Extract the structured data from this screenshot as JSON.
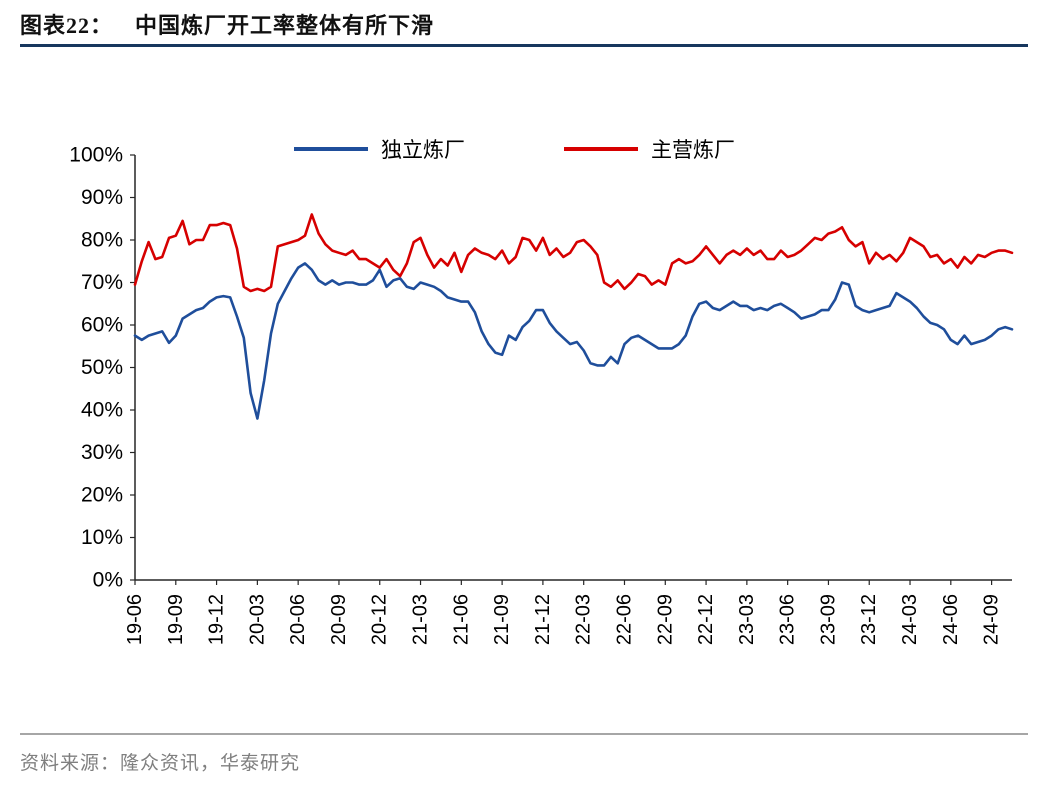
{
  "header": {
    "tag": "图表22：",
    "title": "中国炼厂开工率整体有所下滑"
  },
  "footer": {
    "source": "资料来源：隆众资讯，华泰研究"
  },
  "colors": {
    "title_rule": "#17375E",
    "footer_rule": "#A6A6A6",
    "footer_text": "#7F7F7F",
    "axis": "#262626",
    "label": "#000000",
    "independent_blue": "#1F4E9B",
    "main_red": "#D60000"
  },
  "chart_data": {
    "type": "line",
    "title": "中国炼厂开工率整体有所下滑",
    "xlabel": "",
    "ylabel": "",
    "grid": false,
    "legend_position": "top",
    "ylim": [
      0,
      100
    ],
    "y_tick_values": [
      0,
      10,
      20,
      30,
      40,
      50,
      60,
      70,
      80,
      90,
      100
    ],
    "y_tick_labels": [
      "0%",
      "10%",
      "20%",
      "30%",
      "40%",
      "50%",
      "60%",
      "70%",
      "80%",
      "90%",
      "100%"
    ],
    "x_start": "2019-06",
    "points_per_month": 2,
    "months_span": 64.5,
    "x_tick_month_offsets": [
      0,
      3,
      6,
      9,
      12,
      15,
      18,
      21,
      24,
      27,
      30,
      33,
      36,
      39,
      42,
      45,
      48,
      51,
      54,
      57,
      60,
      63
    ],
    "x_tick_labels": [
      "19-06",
      "19-09",
      "19-12",
      "20-03",
      "20-06",
      "20-09",
      "20-12",
      "21-03",
      "21-06",
      "21-09",
      "21-12",
      "22-03",
      "22-06",
      "22-09",
      "22-12",
      "23-03",
      "23-06",
      "23-09",
      "23-12",
      "24-03",
      "24-06",
      "24-09"
    ],
    "series": [
      {
        "name": "独立炼厂",
        "color": "#1F4E9B",
        "values": [
          57.5,
          56.5,
          57.5,
          58,
          58.5,
          55.8,
          57.5,
          61.5,
          62.5,
          63.5,
          64,
          65.5,
          66.5,
          66.8,
          66.5,
          62,
          57,
          44,
          38,
          47,
          58,
          65,
          68,
          71,
          73.5,
          74.5,
          73,
          70.5,
          69.5,
          70.5,
          69.5,
          70,
          70,
          69.5,
          69.5,
          70.5,
          73,
          69,
          70.5,
          71,
          69,
          68.5,
          70,
          69.5,
          69,
          68,
          66.5,
          66,
          65.5,
          65.5,
          63,
          58.5,
          55.5,
          53.5,
          53,
          57.5,
          56.5,
          59.5,
          61,
          63.5,
          63.5,
          60.5,
          58.5,
          57,
          55.5,
          56,
          54,
          51,
          50.5,
          50.5,
          52.5,
          51,
          55.5,
          57,
          57.5,
          56.5,
          55.5,
          54.5,
          54.5,
          54.5,
          55.5,
          57.5,
          62,
          65,
          65.5,
          64,
          63.5,
          64.5,
          65.5,
          64.5,
          64.5,
          63.5,
          64,
          63.5,
          64.5,
          65,
          64,
          63,
          61.5,
          62,
          62.5,
          63.5,
          63.5,
          66,
          70,
          69.5,
          64.5,
          63.5,
          63,
          63.5,
          64,
          64.5,
          67.5,
          66.5,
          65.5,
          64,
          62,
          60.5,
          60,
          59,
          56.5,
          55.5,
          57.5,
          55.5,
          56,
          56.5,
          57.5,
          59,
          59.5,
          59
        ]
      },
      {
        "name": "主营炼厂",
        "color": "#D60000",
        "values": [
          69.5,
          75,
          79.5,
          75.5,
          76,
          80.5,
          81,
          84.5,
          79,
          80,
          80,
          83.5,
          83.5,
          84,
          83.5,
          78,
          69,
          68,
          68.5,
          68,
          69,
          78.5,
          79,
          79.5,
          80,
          81,
          86,
          81.5,
          79,
          77.5,
          77,
          76.5,
          77.5,
          75.5,
          75.5,
          74.5,
          73.5,
          75.5,
          73,
          71.5,
          74.5,
          79.5,
          80.5,
          76.5,
          73.5,
          75.5,
          74,
          77,
          72.5,
          76.5,
          78,
          77,
          76.5,
          75.5,
          77.5,
          74.5,
          76,
          80.5,
          80,
          77.5,
          80.5,
          76.5,
          78,
          76,
          77,
          79.5,
          80,
          78.5,
          76.5,
          70,
          69,
          70.5,
          68.5,
          70,
          72,
          71.5,
          69.5,
          70.5,
          69.5,
          74.5,
          75.5,
          74.5,
          75,
          76.5,
          78.5,
          76.5,
          74.5,
          76.5,
          77.5,
          76.5,
          78,
          76.5,
          77.5,
          75.5,
          75.5,
          77.5,
          76,
          76.5,
          77.5,
          79,
          80.5,
          80,
          81.5,
          82,
          83,
          80,
          78.5,
          79.5,
          74.5,
          77,
          75.5,
          76.5,
          75,
          77,
          80.5,
          79.5,
          78.5,
          76,
          76.5,
          74.5,
          75.5,
          73.5,
          76,
          74.5,
          76.5,
          76,
          77,
          77.5,
          77.5,
          77
        ]
      }
    ]
  }
}
